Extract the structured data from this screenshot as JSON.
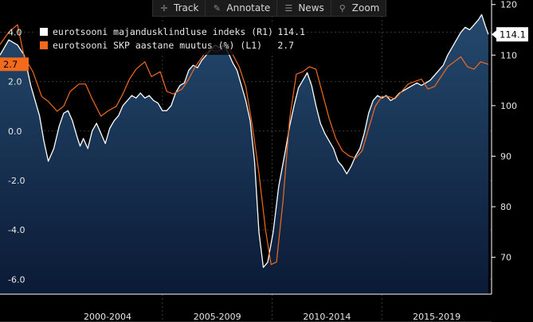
{
  "toolbar": {
    "items": [
      {
        "label": "Track",
        "icon": "crosshair-icon"
      },
      {
        "label": "Annotate",
        "icon": "pencil-icon"
      },
      {
        "label": "News",
        "icon": "news-icon"
      },
      {
        "label": "Zoom",
        "icon": "magnifier-icon"
      }
    ]
  },
  "legend": {
    "series": [
      {
        "name": "eurotsooni majandusklindluse indeks (R1)",
        "value": "114.1",
        "color": "#ffffff"
      },
      {
        "name": "eurotsooni SKP aastane muutus (%) (L1)",
        "value": "2.7",
        "color": "#f26b1d"
      }
    ]
  },
  "badges": {
    "left": {
      "value": "2.7",
      "color": "#f26b1d"
    },
    "right": {
      "value": "114.1",
      "color": "#ffffff"
    }
  },
  "chart_data": {
    "type": "line",
    "x_range": [
      1997.0,
      2019.4
    ],
    "x_tick_labels": [
      "2000-2004",
      "2005-2009",
      "2010-2014",
      "2015-2019"
    ],
    "y_left": {
      "range": [
        -6.6,
        5.3
      ],
      "ticks": [
        4.0,
        2.0,
        0.0,
        -2.0,
        -4.0,
        -6.0
      ],
      "tick_labels": [
        "4.0",
        "2.0",
        "0.0",
        "-2.0",
        "-4.0",
        "-6.0"
      ]
    },
    "y_right": {
      "range": [
        62.7,
        120.9
      ],
      "ticks": [
        120,
        110,
        100,
        90,
        80,
        70
      ],
      "tick_labels": [
        "120",
        "110",
        "100",
        "90",
        "80",
        "70"
      ]
    },
    "series": [
      {
        "name": "eurotsooni majandusklindluse indeks (R1)",
        "axis": "right",
        "style": "area",
        "color": "#ffffff",
        "x": [
          1997.0,
          1997.4,
          1997.8,
          1998.1,
          1998.4,
          1998.8,
          1999.0,
          1999.2,
          1999.45,
          1999.7,
          1999.9,
          2000.1,
          2000.3,
          2000.5,
          2000.65,
          2000.8,
          2001.0,
          2001.2,
          2001.4,
          2001.6,
          2001.8,
          2002.0,
          2002.2,
          2002.4,
          2002.6,
          2002.8,
          2003.0,
          2003.2,
          2003.4,
          2003.6,
          2003.8,
          2004.0,
          2004.2,
          2004.4,
          2004.6,
          2004.8,
          2005.0,
          2005.2,
          2005.4,
          2005.6,
          2005.8,
          2006.0,
          2006.2,
          2006.4,
          2006.6,
          2006.8,
          2007.0,
          2007.2,
          2007.4,
          2007.6,
          2007.8,
          2008.0,
          2008.2,
          2008.4,
          2008.6,
          2008.8,
          2009.0,
          2009.2,
          2009.45,
          2009.7,
          2010.0,
          2010.2,
          2010.4,
          2010.6,
          2010.8,
          2011.0,
          2011.2,
          2011.4,
          2011.6,
          2011.8,
          2012.0,
          2012.2,
          2012.4,
          2012.6,
          2012.8,
          2013.0,
          2013.2,
          2013.4,
          2013.6,
          2013.8,
          2014.0,
          2014.2,
          2014.4,
          2014.6,
          2014.8,
          2015.0,
          2015.2,
          2015.4,
          2015.6,
          2015.8,
          2016.0,
          2016.2,
          2016.4,
          2016.6,
          2016.8,
          2017.0,
          2017.2,
          2017.4,
          2017.6,
          2017.8,
          2018.0,
          2018.2,
          2018.4,
          2018.6,
          2018.8,
          2018.95,
          2019.1,
          2019.25
        ],
        "y": [
          110.0,
          113.0,
          112.0,
          110.0,
          104.0,
          98.0,
          93.0,
          89.0,
          91.5,
          96.0,
          98.5,
          99.0,
          97.0,
          94.0,
          92.0,
          93.5,
          91.5,
          95.0,
          96.5,
          94.5,
          92.5,
          95.5,
          97.0,
          98.0,
          100.0,
          101.0,
          102.0,
          101.5,
          102.5,
          101.5,
          102.0,
          101.0,
          100.5,
          99.0,
          99.0,
          100.0,
          102.5,
          104.0,
          104.5,
          107.0,
          108.0,
          107.5,
          109.0,
          110.0,
          111.0,
          112.0,
          111.5,
          112.0,
          110.5,
          108.5,
          107.0,
          104.0,
          101.0,
          97.0,
          89.0,
          75.0,
          68.0,
          69.0,
          75.0,
          84.0,
          91.0,
          96.0,
          100.0,
          103.5,
          105.0,
          106.5,
          104.0,
          100.0,
          96.5,
          94.5,
          93.0,
          91.5,
          89.0,
          88.0,
          86.5,
          88.0,
          90.0,
          91.5,
          94.5,
          98.5,
          101.0,
          102.0,
          101.5,
          102.0,
          101.0,
          101.5,
          102.5,
          103.0,
          103.5,
          104.0,
          104.5,
          104.0,
          104.5,
          105.0,
          106.0,
          107.0,
          108.0,
          110.0,
          111.5,
          113.0,
          114.5,
          115.5,
          115.0,
          116.0,
          117.0,
          118.0,
          116.0,
          114.1
        ]
      },
      {
        "name": "eurotsooni SKP aastane muutus (%)",
        "axis": "left",
        "style": "line",
        "color": "#f26b1d",
        "x": [
          1997.0,
          1997.4,
          1997.8,
          1998.1,
          1998.5,
          1998.9,
          1999.2,
          1999.6,
          1999.9,
          2000.2,
          2000.6,
          2000.9,
          2001.2,
          2001.6,
          2001.9,
          2002.3,
          2002.6,
          2002.9,
          2003.2,
          2003.6,
          2003.9,
          2004.3,
          2004.6,
          2004.9,
          2005.3,
          2005.6,
          2005.9,
          2006.3,
          2006.6,
          2006.9,
          2007.3,
          2007.6,
          2007.9,
          2008.2,
          2008.5,
          2008.8,
          2009.1,
          2009.35,
          2009.6,
          2009.9,
          2010.2,
          2010.5,
          2010.8,
          2011.1,
          2011.4,
          2011.7,
          2012.0,
          2012.3,
          2012.6,
          2012.9,
          2013.2,
          2013.5,
          2013.8,
          2014.1,
          2014.4,
          2014.7,
          2015.0,
          2015.3,
          2015.6,
          2015.9,
          2016.2,
          2016.5,
          2016.8,
          2017.1,
          2017.4,
          2017.7,
          2018.0,
          2018.3,
          2018.6,
          2018.9,
          2019.25
        ],
        "y": [
          3.5,
          4.0,
          4.3,
          3.0,
          2.4,
          1.4,
          1.2,
          0.8,
          1.0,
          1.6,
          1.9,
          1.9,
          1.3,
          0.6,
          0.8,
          1.0,
          1.5,
          2.1,
          2.5,
          2.8,
          2.2,
          2.4,
          1.6,
          1.5,
          1.7,
          2.1,
          2.6,
          3.1,
          3.3,
          3.2,
          3.5,
          3.1,
          2.6,
          1.8,
          0.2,
          -1.7,
          -4.0,
          -5.4,
          -5.3,
          -2.8,
          0.5,
          2.3,
          2.4,
          2.6,
          2.5,
          1.5,
          0.5,
          -0.3,
          -0.8,
          -1.0,
          -1.1,
          -0.8,
          0.1,
          1.0,
          1.4,
          1.4,
          1.3,
          1.6,
          1.9,
          2.0,
          2.1,
          1.7,
          1.8,
          2.2,
          2.6,
          2.8,
          3.0,
          2.6,
          2.5,
          2.8,
          2.7
        ]
      }
    ]
  }
}
